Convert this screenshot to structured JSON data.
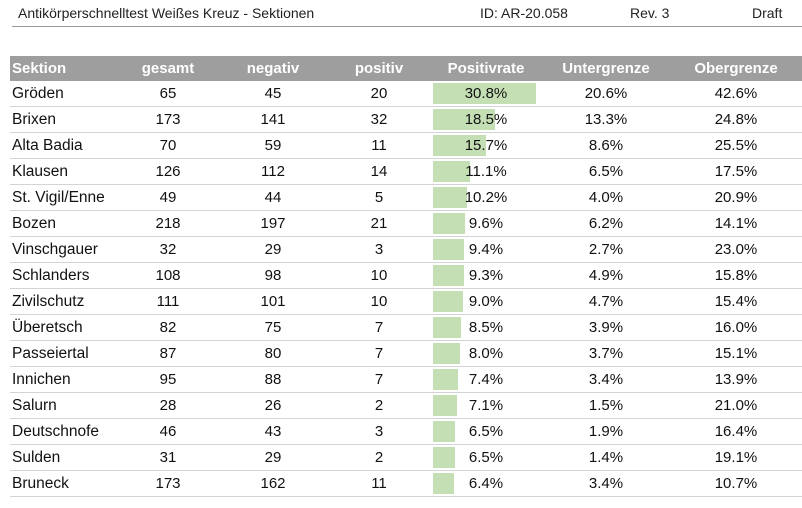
{
  "header": {
    "title": "Antikörperschnelltest Weißes Kreuz - Sektionen",
    "id": "ID: AR-20.058",
    "rev": "Rev. 3",
    "status": "Draft"
  },
  "table": {
    "columns": [
      "Sektion",
      "gesamt",
      "negativ",
      "positiv",
      "Positivrate",
      "Untergrenze",
      "Obergrenze"
    ],
    "bar_max_rate": 30.8,
    "bar_color": "#c4dfb4",
    "header_color": "#9e9e9e",
    "rows": [
      {
        "sektion": "Gröden",
        "gesamt": "65",
        "negativ": "45",
        "positiv": "20",
        "rate": "30.8%",
        "rate_value": 30.8,
        "lower": "20.6%",
        "upper": "42.6%"
      },
      {
        "sektion": "Brixen",
        "gesamt": "173",
        "negativ": "141",
        "positiv": "32",
        "rate": "18.5%",
        "rate_value": 18.5,
        "lower": "13.3%",
        "upper": "24.8%"
      },
      {
        "sektion": "Alta Badia",
        "gesamt": "70",
        "negativ": "59",
        "positiv": "11",
        "rate": "15.7%",
        "rate_value": 15.7,
        "lower": "8.6%",
        "upper": "25.5%"
      },
      {
        "sektion": "Klausen",
        "gesamt": "126",
        "negativ": "112",
        "positiv": "14",
        "rate": "11.1%",
        "rate_value": 11.1,
        "lower": "6.5%",
        "upper": "17.5%"
      },
      {
        "sektion": "St. Vigil/Enne",
        "gesamt": "49",
        "negativ": "44",
        "positiv": "5",
        "rate": "10.2%",
        "rate_value": 10.2,
        "lower": "4.0%",
        "upper": "20.9%"
      },
      {
        "sektion": "Bozen",
        "gesamt": "218",
        "negativ": "197",
        "positiv": "21",
        "rate": "9.6%",
        "rate_value": 9.6,
        "lower": "6.2%",
        "upper": "14.1%"
      },
      {
        "sektion": "Vinschgauer",
        "gesamt": "32",
        "negativ": "29",
        "positiv": "3",
        "rate": "9.4%",
        "rate_value": 9.4,
        "lower": "2.7%",
        "upper": "23.0%"
      },
      {
        "sektion": "Schlanders",
        "gesamt": "108",
        "negativ": "98",
        "positiv": "10",
        "rate": "9.3%",
        "rate_value": 9.3,
        "lower": "4.9%",
        "upper": "15.8%"
      },
      {
        "sektion": "Zivilschutz",
        "gesamt": "111",
        "negativ": "101",
        "positiv": "10",
        "rate": "9.0%",
        "rate_value": 9.0,
        "lower": "4.7%",
        "upper": "15.4%"
      },
      {
        "sektion": "Überetsch",
        "gesamt": "82",
        "negativ": "75",
        "positiv": "7",
        "rate": "8.5%",
        "rate_value": 8.5,
        "lower": "3.9%",
        "upper": "16.0%"
      },
      {
        "sektion": "Passeiertal",
        "gesamt": "87",
        "negativ": "80",
        "positiv": "7",
        "rate": "8.0%",
        "rate_value": 8.0,
        "lower": "3.7%",
        "upper": "15.1%"
      },
      {
        "sektion": "Innichen",
        "gesamt": "95",
        "negativ": "88",
        "positiv": "7",
        "rate": "7.4%",
        "rate_value": 7.4,
        "lower": "3.4%",
        "upper": "13.9%"
      },
      {
        "sektion": "Salurn",
        "gesamt": "28",
        "negativ": "26",
        "positiv": "2",
        "rate": "7.1%",
        "rate_value": 7.1,
        "lower": "1.5%",
        "upper": "21.0%"
      },
      {
        "sektion": "Deutschnofe",
        "gesamt": "46",
        "negativ": "43",
        "positiv": "3",
        "rate": "6.5%",
        "rate_value": 6.5,
        "lower": "1.9%",
        "upper": "16.4%"
      },
      {
        "sektion": "Sulden",
        "gesamt": "31",
        "negativ": "29",
        "positiv": "2",
        "rate": "6.5%",
        "rate_value": 6.5,
        "lower": "1.4%",
        "upper": "19.1%"
      },
      {
        "sektion": "Bruneck",
        "gesamt": "173",
        "negativ": "162",
        "positiv": "11",
        "rate": "6.4%",
        "rate_value": 6.4,
        "lower": "3.4%",
        "upper": "10.7%"
      }
    ]
  }
}
